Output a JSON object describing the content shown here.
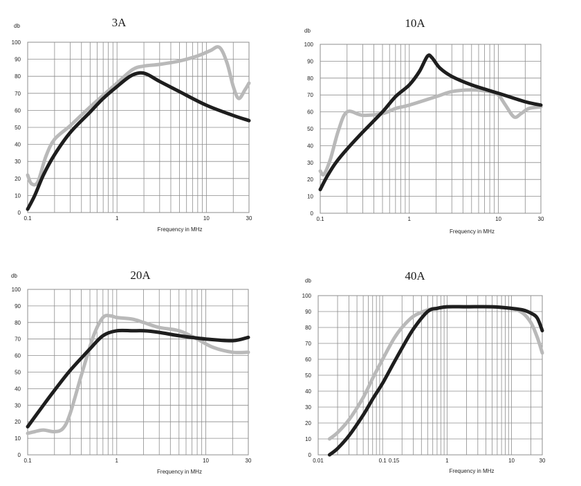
{
  "colors": {
    "series_a": "#1e1e1e",
    "series_b": "#b9b9b9",
    "grid": "#8c8c8c"
  },
  "chart_data": [
    {
      "type": "line",
      "title": "3A",
      "ylabel": "db",
      "xlabel": "Frequency in MHz",
      "xscale": "log",
      "xlim": [
        0.1,
        30
      ],
      "ylim": [
        0,
        100
      ],
      "grid": true,
      "xticks": [
        "0.1",
        "1",
        "10",
        "30"
      ],
      "yticks": [
        "0",
        "10",
        "20",
        "30",
        "40",
        "50",
        "60",
        "70",
        "80",
        "90",
        "100"
      ],
      "series": [
        {
          "x": [
            0.1,
            0.12,
            0.15,
            0.2,
            0.3,
            0.5,
            0.7,
            1,
            1.4,
            1.8,
            2.2,
            3,
            5,
            10,
            20,
            30
          ],
          "y": [
            2,
            10,
            22,
            34,
            47,
            59,
            67,
            74,
            80,
            82,
            81,
            77,
            71,
            63,
            57,
            54
          ]
        },
        {
          "x": [
            0.1,
            0.11,
            0.13,
            0.16,
            0.2,
            0.3,
            0.5,
            1,
            1.5,
            2,
            3,
            5,
            8,
            11,
            14,
            17,
            20,
            23,
            27,
            30
          ],
          "y": [
            22,
            17,
            18,
            33,
            43,
            51,
            62,
            76,
            84,
            86,
            87,
            89,
            92,
            95,
            97,
            88,
            74,
            67,
            72,
            76
          ]
        }
      ]
    },
    {
      "type": "line",
      "title": "10A",
      "ylabel": "db",
      "xlabel": "Frequency in MHz",
      "xscale": "log",
      "xlim": [
        0.1,
        30
      ],
      "ylim": [
        0,
        100
      ],
      "grid": true,
      "xticks": [
        "0.1",
        "1",
        "10",
        "30"
      ],
      "yticks": [
        "0",
        "10",
        "20",
        "30",
        "40",
        "50",
        "60",
        "70",
        "80",
        "90",
        "100"
      ],
      "series": [
        {
          "x": [
            0.1,
            0.12,
            0.15,
            0.2,
            0.3,
            0.5,
            0.7,
            1,
            1.3,
            1.6,
            1.8,
            2.2,
            3,
            5,
            10,
            20,
            30
          ],
          "y": [
            14,
            22,
            30,
            38,
            48,
            60,
            69,
            76,
            84,
            93,
            92,
            86,
            81,
            76,
            71,
            66,
            64
          ]
        },
        {
          "x": [
            0.1,
            0.11,
            0.13,
            0.16,
            0.2,
            0.3,
            0.5,
            0.7,
            1,
            2,
            3,
            5,
            8,
            10,
            12,
            15,
            18,
            22,
            30
          ],
          "y": [
            25,
            23,
            32,
            49,
            60,
            58,
            59,
            62,
            64,
            69,
            72,
            73,
            72,
            70,
            64,
            57,
            59,
            62,
            63
          ]
        }
      ]
    },
    {
      "type": "line",
      "title": "20A",
      "ylabel": "db",
      "xlabel": "Frequency in MHz",
      "xscale": "log",
      "xlim": [
        0.1,
        30
      ],
      "ylim": [
        0,
        100
      ],
      "grid": true,
      "xticks": [
        "0.1",
        "1",
        "10",
        "30"
      ],
      "yticks": [
        "0",
        "10",
        "20",
        "30",
        "40",
        "50",
        "60",
        "70",
        "80",
        "90",
        "100"
      ],
      "series": [
        {
          "x": [
            0.1,
            0.15,
            0.2,
            0.3,
            0.5,
            0.7,
            1,
            1.5,
            2,
            3,
            5,
            10,
            20,
            30
          ],
          "y": [
            17,
            30,
            39,
            51,
            64,
            72,
            75,
            75,
            75,
            74,
            72,
            70,
            69,
            71
          ]
        },
        {
          "x": [
            0.1,
            0.12,
            0.15,
            0.2,
            0.25,
            0.3,
            0.4,
            0.55,
            0.7,
            0.85,
            1,
            1.5,
            2,
            3,
            5,
            8,
            12,
            20,
            30
          ],
          "y": [
            13,
            14,
            15,
            14,
            16,
            25,
            48,
            72,
            83,
            84,
            83,
            82,
            80,
            77,
            75,
            70,
            65,
            62,
            62
          ]
        }
      ]
    },
    {
      "type": "line",
      "title": "40A",
      "ylabel": "db",
      "xlabel": "Frequency in MHz",
      "xscale": "log",
      "xlim": [
        0.01,
        30
      ],
      "ylim": [
        0,
        100
      ],
      "grid": true,
      "xticks": [
        "0.01",
        "0.1",
        "0.15",
        "1",
        "10",
        "30"
      ],
      "yticks": [
        "0",
        "10",
        "20",
        "30",
        "40",
        "50",
        "60",
        "70",
        "80",
        "90",
        "100"
      ],
      "series": [
        {
          "x": [
            0.015,
            0.02,
            0.03,
            0.05,
            0.07,
            0.1,
            0.15,
            0.2,
            0.3,
            0.5,
            0.7,
            1,
            2,
            5,
            10,
            15,
            20,
            25,
            30
          ],
          "y": [
            0,
            4,
            12,
            25,
            35,
            45,
            58,
            67,
            79,
            90,
            92,
            93,
            93,
            93,
            92,
            91,
            89,
            86,
            78
          ]
        },
        {
          "x": [
            0.015,
            0.02,
            0.03,
            0.05,
            0.07,
            0.1,
            0.15,
            0.2,
            0.3,
            0.5,
            0.7,
            1,
            2,
            5,
            10,
            15,
            20,
            25,
            30
          ],
          "y": [
            10,
            14,
            22,
            36,
            48,
            60,
            73,
            80,
            87,
            91,
            92,
            93,
            93,
            93,
            92,
            89,
            83,
            74,
            64
          ]
        }
      ]
    }
  ]
}
